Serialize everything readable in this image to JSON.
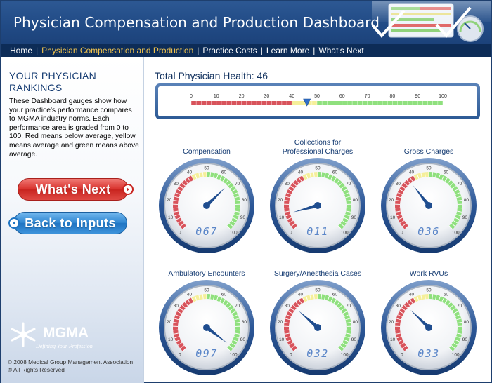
{
  "header": {
    "title": "Physician Compensation and Production Dashboard"
  },
  "nav": {
    "items": [
      {
        "label": "Home",
        "active": false
      },
      {
        "label": "Physician Compensation and Production",
        "active": true
      },
      {
        "label": "Practice Costs",
        "active": false
      },
      {
        "label": "Learn More",
        "active": false
      },
      {
        "label": "What's Next",
        "active": false
      }
    ]
  },
  "sidebar": {
    "heading_line1": "YOUR PHYSICIAN",
    "heading_line2": "RANKINGS",
    "description": "These Dashboard gauges show how your practice's performance compares to MGMA industry norms. Each performance area is graded from 0 to 100. Red means below average, yellow means average and green means above average.",
    "whats_next_label": "What's Next",
    "back_label": "Back to Inputs",
    "logo_text": "MGMA",
    "logo_tagline": "Defining Your Profession",
    "copyright_line1": "© 2008 Medical Group Management Association",
    "copyright_line2": "® All Rights Reserved"
  },
  "total_health": {
    "label": "Total Physician Health: 46",
    "value": 46,
    "scale_ticks": [
      "0",
      "10",
      "20",
      "30",
      "40",
      "50",
      "60",
      "70",
      "80",
      "90",
      "100"
    ]
  },
  "gauges": [
    {
      "title_line1": "",
      "title_line2": "Compensation",
      "value": 67,
      "display": "067"
    },
    {
      "title_line1": "Collections for",
      "title_line2": "Professional Charges",
      "value": 11,
      "display": "011"
    },
    {
      "title_line1": "",
      "title_line2": "Gross Charges",
      "value": 36,
      "display": "036"
    },
    {
      "title_line1": "",
      "title_line2": "Ambulatory Encounters",
      "value": 97,
      "display": "097"
    },
    {
      "title_line1": "",
      "title_line2": "Surgery/Anesthesia Cases",
      "value": 32,
      "display": "032"
    },
    {
      "title_line1": "",
      "title_line2": "Work RVUs",
      "value": 33,
      "display": "033"
    }
  ],
  "gauge_scale": [
    "0",
    "10",
    "20",
    "30",
    "40",
    "50",
    "60",
    "70",
    "80",
    "90",
    "100"
  ],
  "colors": {
    "below_average": "#d8535b",
    "average": "#f5ef9a",
    "above_average": "#8fe07e",
    "needle": "#1f4d8f",
    "digits": "#5b86c8"
  }
}
